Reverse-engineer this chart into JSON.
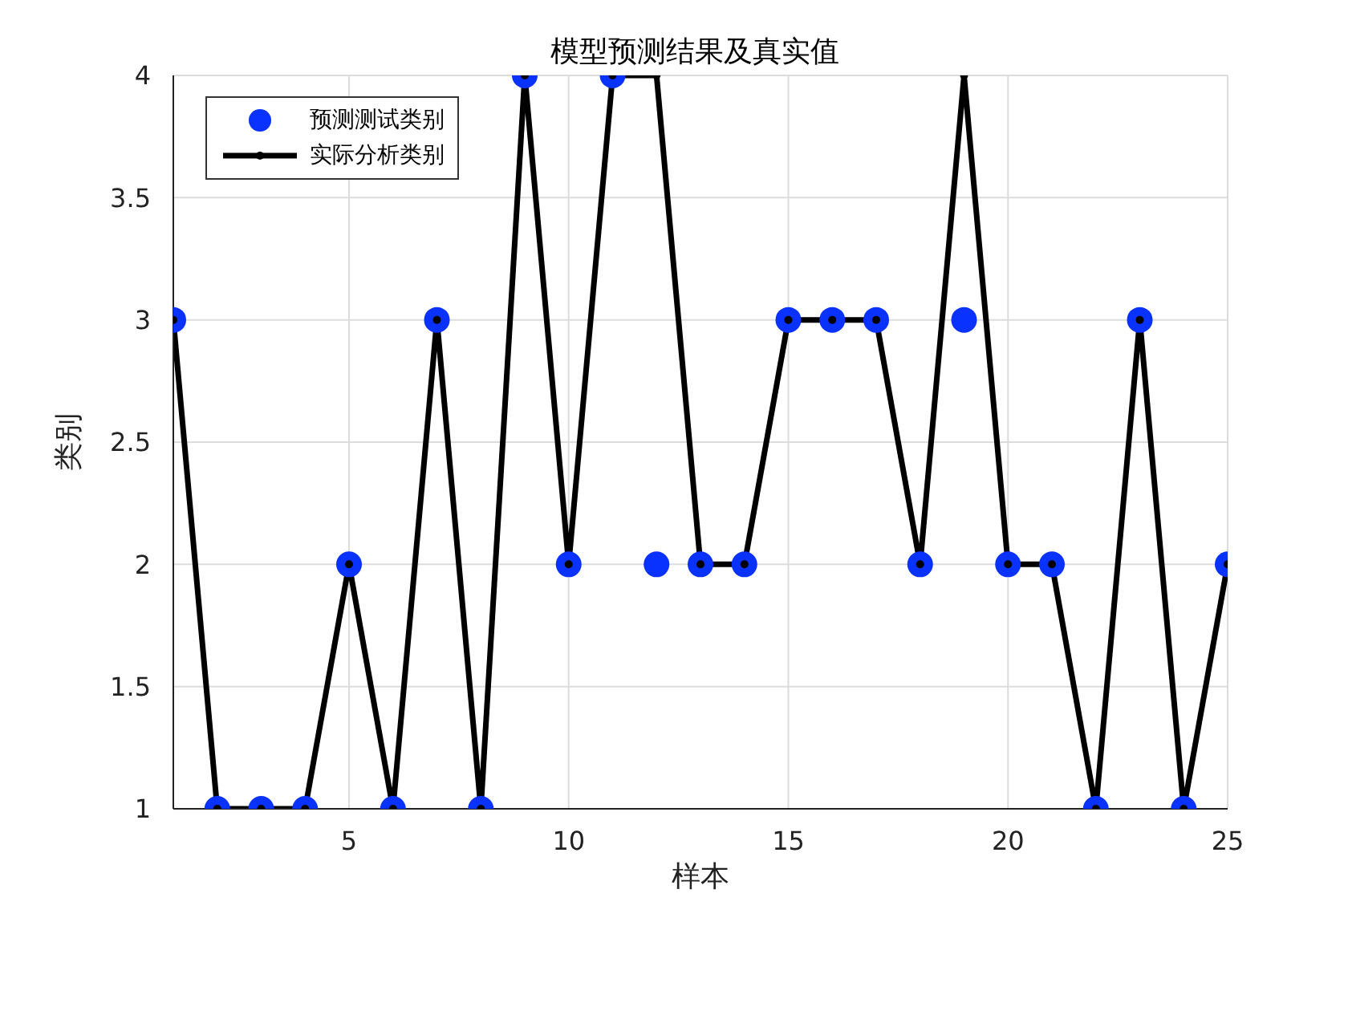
{
  "chart_data": {
    "type": "line",
    "title": "模型预测结果及真实值",
    "xlabel": "样本",
    "ylabel": "类别",
    "x": [
      1,
      2,
      3,
      4,
      5,
      6,
      7,
      8,
      9,
      10,
      11,
      12,
      13,
      14,
      15,
      16,
      17,
      18,
      19,
      20,
      21,
      22,
      23,
      24,
      25
    ],
    "series": [
      {
        "name": "预测测试类别",
        "type": "scatter",
        "color": "#0a32ff",
        "values": [
          3,
          1,
          1,
          1,
          2,
          1,
          3,
          1,
          4,
          2,
          4,
          2,
          2,
          2,
          3,
          3,
          3,
          2,
          3,
          2,
          2,
          1,
          3,
          1,
          2
        ]
      },
      {
        "name": "实际分析类别",
        "type": "line",
        "color": "#000000",
        "values": [
          3,
          1,
          1,
          1,
          2,
          1,
          3,
          1,
          4,
          2,
          4,
          4,
          2,
          2,
          3,
          3,
          3,
          2,
          4,
          2,
          2,
          1,
          3,
          1,
          2
        ]
      }
    ],
    "xlim": [
      1,
      25
    ],
    "xticks": [
      5,
      10,
      15,
      20,
      25
    ],
    "ylim": [
      1,
      4
    ],
    "yticks": [
      1,
      1.5,
      2,
      2.5,
      3,
      3.5,
      4
    ],
    "grid": true,
    "legend": "top left",
    "marker": "circle",
    "line_style": "solid"
  }
}
